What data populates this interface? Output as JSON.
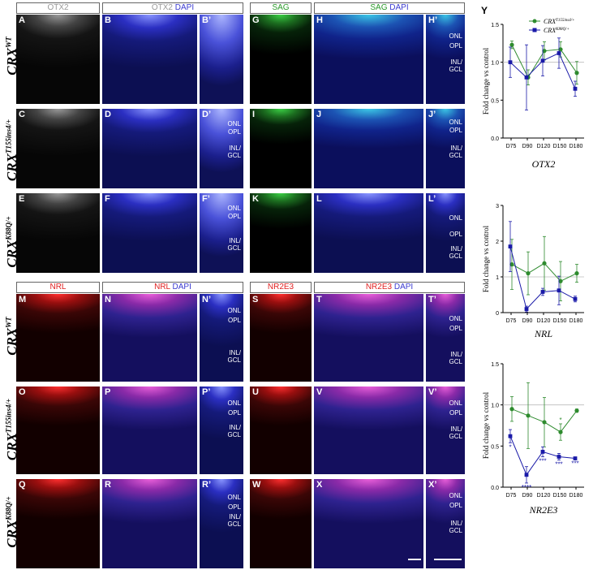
{
  "headers_top": {
    "otx2_a": "OTX2",
    "otx2_b": "OTX2",
    "dapi_b": "DAPI",
    "sag_g": "SAG",
    "sag_h": "SAG",
    "dapi_h": "DAPI"
  },
  "headers_bottom": {
    "nrl_m": "NRL",
    "nrl_n": "NRL",
    "dapi_n": "DAPI",
    "nr2e3_s": "NR2E3",
    "nr2e3_t": "NR2E3",
    "dapi_t": "DAPI"
  },
  "row_labels": {
    "wt": {
      "base": "CRX",
      "sup": "WT"
    },
    "t155": {
      "base": "CRX",
      "sup": "T155ins4/+"
    },
    "k88q": {
      "base": "CRX",
      "sup": "K88Q/+"
    }
  },
  "panel_letters": {
    "A": "A",
    "B": "B",
    "Bp": "B’",
    "G": "G",
    "H": "H",
    "Hp": "H’",
    "C": "C",
    "D": "D",
    "Dp": "D’",
    "I": "I",
    "J": "J",
    "Jp": "J’",
    "E": "E",
    "F": "F",
    "Fp": "F’",
    "K": "K",
    "L": "L",
    "Lp": "L’",
    "M": "M",
    "N": "N",
    "Np": "N’",
    "S": "S",
    "T": "T",
    "Tp": "T’",
    "O": "O",
    "P": "P",
    "Pp": "P’",
    "U": "U",
    "V": "V",
    "Vp": "V’",
    "Q": "Q",
    "R": "R",
    "Rp": "R’",
    "W": "W",
    "X": "X",
    "Xp": "X’",
    "Y": "Y"
  },
  "layers": {
    "onl": "ONL",
    "opl": "OPL",
    "inl": "INL/",
    "gcl": "GCL"
  },
  "legend": {
    "t155": {
      "base": "CRX",
      "sup": "T155ins4/+"
    },
    "k88q": {
      "base": "CRX",
      "sup": "K88Q/+"
    }
  },
  "colors": {
    "green": "#2e8b2e",
    "blue": "#1a1aa8",
    "axis": "#000000",
    "ref": "#bbbbbb"
  },
  "chart_data": [
    {
      "type": "line",
      "title": "OTX2",
      "ylabel": "Fold change vs control",
      "categories": [
        "D75",
        "D90",
        "D120",
        "D150",
        "D180"
      ],
      "ylim": [
        0,
        1.5
      ],
      "yticks": [
        0.0,
        0.5,
        1.0,
        1.5
      ],
      "ytick_labels": [
        "0.0",
        "0.5",
        "1.0",
        "1.5"
      ],
      "reference_line": 1.0,
      "series": [
        {
          "name": "CRX T155ins4/+",
          "color": "green",
          "values": [
            1.23,
            0.8,
            1.15,
            1.17,
            0.86
          ],
          "err": [
            0.05,
            0.1,
            0.12,
            0.1,
            0.15
          ],
          "stars": [
            "",
            "",
            "",
            "",
            ""
          ]
        },
        {
          "name": "CRX K88Q/+",
          "color": "blue",
          "values": [
            1.0,
            0.8,
            1.02,
            1.12,
            0.65
          ],
          "err": [
            0.2,
            0.43,
            0.2,
            0.2,
            0.1
          ],
          "stars": [
            "",
            "",
            "",
            "",
            ""
          ]
        }
      ]
    },
    {
      "type": "line",
      "title": "NRL",
      "ylabel": "Fold change vs control",
      "categories": [
        "D75",
        "D90",
        "D120",
        "D150",
        "D180"
      ],
      "ylim": [
        0,
        3
      ],
      "yticks": [
        0,
        1,
        2,
        3
      ],
      "ytick_labels": [
        "0",
        "1",
        "2",
        "3"
      ],
      "reference_line": 1.0,
      "series": [
        {
          "name": "CRX T155ins4/+",
          "color": "green",
          "values": [
            1.35,
            1.1,
            1.38,
            0.88,
            1.1
          ],
          "err": [
            0.7,
            0.6,
            0.75,
            0.55,
            0.25
          ],
          "stars": [
            "",
            "",
            "",
            "",
            ""
          ]
        },
        {
          "name": "CRX K88Q/+",
          "color": "blue",
          "values": [
            1.85,
            0.1,
            0.58,
            0.62,
            0.38
          ],
          "err": [
            0.7,
            0.08,
            0.1,
            0.4,
            0.08
          ],
          "stars": [
            "",
            "",
            "",
            "",
            ""
          ]
        }
      ]
    },
    {
      "type": "line",
      "title": "NR2E3",
      "ylabel": "Fold change vs control",
      "categories": [
        "D75",
        "D90",
        "D120",
        "D150",
        "D180"
      ],
      "ylim": [
        0,
        1.5
      ],
      "yticks": [
        0.0,
        0.5,
        1.0,
        1.5
      ],
      "ytick_labels": [
        "0.0",
        "0.5",
        "1.0",
        "1.5"
      ],
      "reference_line": 1.0,
      "series": [
        {
          "name": "CRX T155ins4/+",
          "color": "green",
          "values": [
            0.95,
            0.87,
            0.79,
            0.67,
            0.93
          ],
          "err": [
            0.15,
            0.4,
            0.3,
            0.1,
            0.02
          ],
          "stars": [
            "",
            "",
            "",
            "*",
            ""
          ]
        },
        {
          "name": "CRX K88Q/+",
          "color": "blue",
          "values": [
            0.62,
            0.15,
            0.43,
            0.37,
            0.35
          ],
          "err": [
            0.08,
            0.1,
            0.06,
            0.04,
            0.01
          ],
          "stars": [
            "*",
            "****",
            "***",
            "***",
            "***"
          ]
        }
      ]
    }
  ]
}
